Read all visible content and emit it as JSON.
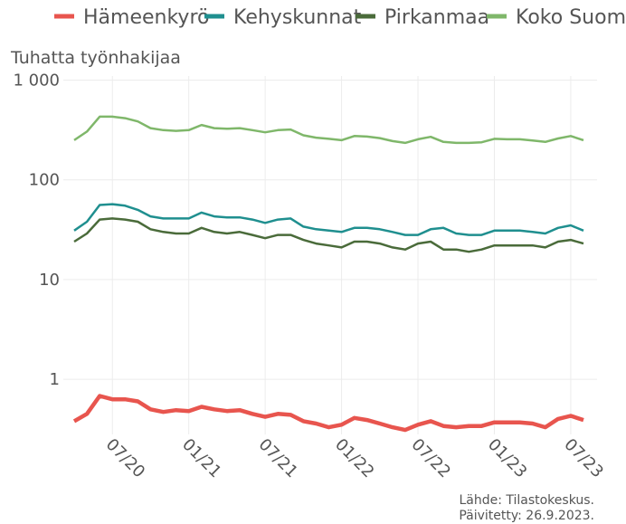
{
  "chart_data": {
    "type": "line",
    "y_label": "Tuhatta työnhakijaa",
    "source": [
      "Lähde: Tilastokeskus.",
      "Päivitetty: 26.9.2023."
    ],
    "log_scale": true,
    "grid": true,
    "legend": "top",
    "x": [
      "2020-04",
      "2020-05",
      "2020-06",
      "2020-07",
      "2020-08",
      "2020-09",
      "2020-10",
      "2020-11",
      "2020-12",
      "2021-01",
      "2021-02",
      "2021-03",
      "2021-04",
      "2021-05",
      "2021-06",
      "2021-07",
      "2021-08",
      "2021-09",
      "2021-10",
      "2021-11",
      "2021-12",
      "2022-01",
      "2022-02",
      "2022-03",
      "2022-04",
      "2022-05",
      "2022-06",
      "2022-07",
      "2022-08",
      "2022-09",
      "2022-10",
      "2022-11",
      "2022-12",
      "2023-01",
      "2023-02",
      "2023-03",
      "2023-04",
      "2023-05",
      "2023-06",
      "2023-07",
      "2023-08"
    ],
    "xlim": [
      "2020-04",
      "2023-08"
    ],
    "xticks": [
      {
        "value": "2020-07",
        "label": "07/20"
      },
      {
        "value": "2021-01",
        "label": "01/21"
      },
      {
        "value": "2021-07",
        "label": "07/21"
      },
      {
        "value": "2022-01",
        "label": "01/22"
      },
      {
        "value": "2022-07",
        "label": "07/22"
      },
      {
        "value": "2023-01",
        "label": "01/23"
      },
      {
        "value": "2023-07",
        "label": "07/23"
      }
    ],
    "ylim": [
      0.28,
      1100
    ],
    "yticks": [
      1,
      10,
      100,
      {
        "value": 1000,
        "label": "1 000"
      }
    ],
    "series": [
      {
        "name": "Hämeenkyrö",
        "color": "#e8554e",
        "values": [
          0.38,
          0.45,
          0.68,
          0.63,
          0.63,
          0.6,
          0.5,
          0.47,
          0.49,
          0.48,
          0.53,
          0.5,
          0.48,
          0.49,
          0.45,
          0.42,
          0.45,
          0.44,
          0.38,
          0.36,
          0.33,
          0.35,
          0.41,
          0.39,
          0.36,
          0.33,
          0.31,
          0.35,
          0.38,
          0.34,
          0.33,
          0.34,
          0.34,
          0.37,
          0.37,
          0.37,
          0.36,
          0.33,
          0.4,
          0.43,
          0.39
        ]
      },
      {
        "name": "Kehyskunnat",
        "color": "#1f8f8f",
        "values": [
          31,
          38,
          56,
          57,
          55,
          50,
          43,
          41,
          41,
          41,
          47,
          43,
          42,
          42,
          40,
          37,
          40,
          41,
          34,
          32,
          31,
          30,
          33,
          33,
          32,
          30,
          28,
          28,
          32,
          33,
          29,
          28,
          28,
          31,
          31,
          31,
          30,
          29,
          33,
          35,
          31
        ]
      },
      {
        "name": "Pirkanmaa",
        "color": "#4a6b3a",
        "values": [
          24,
          29,
          40,
          41,
          40,
          38,
          32,
          30,
          29,
          29,
          33,
          30,
          29,
          30,
          28,
          26,
          28,
          28,
          25,
          23,
          22,
          21,
          24,
          24,
          23,
          21,
          20,
          23,
          24,
          20,
          20,
          19,
          20,
          22,
          22,
          22,
          22,
          21,
          24,
          25,
          23
        ]
      },
      {
        "name": "Koko Suomi",
        "color": "#7fb76a",
        "values": [
          250,
          305,
          430,
          430,
          415,
          385,
          330,
          315,
          310,
          315,
          355,
          330,
          325,
          330,
          315,
          300,
          315,
          320,
          280,
          265,
          258,
          250,
          275,
          272,
          262,
          245,
          235,
          255,
          270,
          240,
          235,
          235,
          238,
          258,
          255,
          255,
          248,
          240,
          260,
          275,
          250
        ]
      }
    ]
  }
}
